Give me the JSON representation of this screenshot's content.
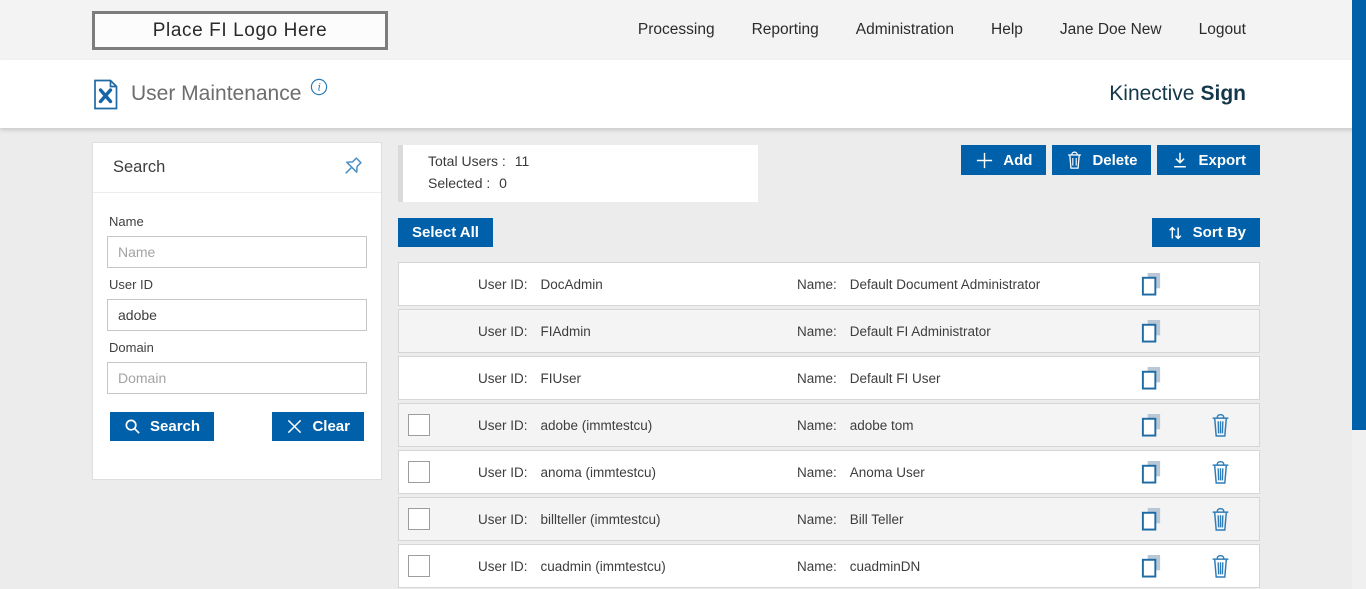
{
  "colors": {
    "accent_blue": "#0060a9",
    "brand_navy": "#14374a"
  },
  "topbar": {
    "logo_placeholder": "Place FI Logo Here",
    "nav": [
      "Processing",
      "Reporting",
      "Administration",
      "Help",
      "Jane Doe New",
      "Logout"
    ]
  },
  "header": {
    "title": "User Maintenance",
    "icon": "document-tools-icon",
    "info_icon": "info-icon",
    "brand": {
      "regular": "Kinective",
      "bold": "Sign"
    }
  },
  "search_panel": {
    "title": "Search",
    "pin_icon": "push-pin-icon",
    "fields": [
      {
        "label": "Name",
        "placeholder": "Name",
        "value": ""
      },
      {
        "label": "User ID",
        "placeholder": "",
        "value": "adobe"
      },
      {
        "label": "Domain",
        "placeholder": "Domain",
        "value": ""
      }
    ],
    "buttons": {
      "search": "Search",
      "clear": "Clear"
    }
  },
  "summary": {
    "total_label": "Total Users :",
    "total_value": "11",
    "selected_label": "Selected :",
    "selected_value": "0"
  },
  "toolbar": {
    "add": "Add",
    "delete": "Delete",
    "export": "Export",
    "select_all": "Select All",
    "sort_by": "Sort By"
  },
  "row_labels": {
    "user_id": "User ID:",
    "name": "Name:"
  },
  "users": [
    {
      "user_id": "DocAdmin",
      "name": "Default Document Administrator",
      "selectable": false,
      "deletable": false
    },
    {
      "user_id": "FIAdmin",
      "name": "Default FI Administrator",
      "selectable": false,
      "deletable": false
    },
    {
      "user_id": "FIUser",
      "name": "Default FI User",
      "selectable": false,
      "deletable": false
    },
    {
      "user_id": "adobe (immtestcu)",
      "name": "adobe tom",
      "selectable": true,
      "deletable": true
    },
    {
      "user_id": "anoma (immtestcu)",
      "name": "Anoma User",
      "selectable": true,
      "deletable": true
    },
    {
      "user_id": "billteller (immtestcu)",
      "name": "Bill Teller",
      "selectable": true,
      "deletable": true
    },
    {
      "user_id": "cuadmin (immtestcu)",
      "name": "cuadminDN",
      "selectable": true,
      "deletable": true
    }
  ]
}
